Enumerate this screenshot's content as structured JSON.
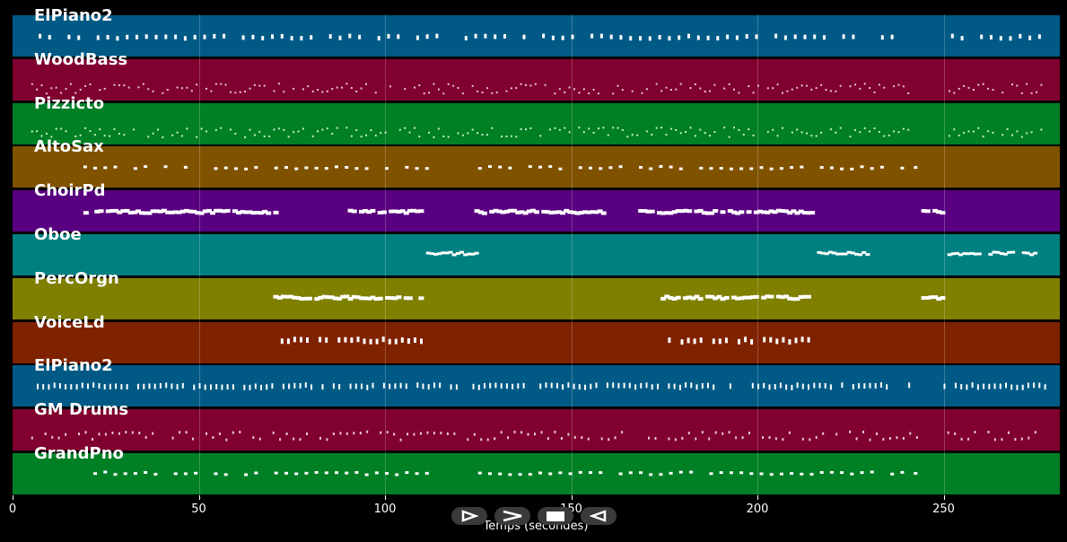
{
  "timeline": {
    "tracks": [
      {
        "name": "ElPiano2",
        "color": "#005a85",
        "note_color": "#ffffff"
      },
      {
        "name": "WoodBass",
        "color": "#80002f",
        "note_color": "#e8c8d0"
      },
      {
        "name": "Pizzicto",
        "color": "#007f25",
        "note_color": "#c8f0c8"
      },
      {
        "name": "AltoSax",
        "color": "#7f5200",
        "note_color": "#ffffff"
      },
      {
        "name": "ChoirPd",
        "color": "#580080",
        "note_color": "#ffffff"
      },
      {
        "name": "Oboe",
        "color": "#008080",
        "note_color": "#ffffff"
      },
      {
        "name": "PercOrgn",
        "color": "#7f7f00",
        "note_color": "#ffffff"
      },
      {
        "name": "VoiceLd",
        "color": "#7f2200",
        "note_color": "#ffffff"
      },
      {
        "name": "ElPiano2",
        "color": "#005a85",
        "note_color": "#ffffff"
      },
      {
        "name": "GM Drums",
        "color": "#80002f",
        "note_color": "#e8c8d0"
      },
      {
        "name": "GrandPno",
        "color": "#007f25",
        "note_color": "#ffffff"
      }
    ],
    "x_axis": {
      "label": "Temps (secondes)",
      "ticks": [
        0,
        50,
        100,
        150,
        200,
        250
      ],
      "tick_labels": [
        "0",
        "50",
        "100",
        "150",
        "200",
        "250"
      ],
      "range": [
        0,
        281
      ],
      "grid": true
    }
  },
  "controls": {
    "play_icon": "play-outline-icon",
    "forward_icon": "forward-chevron-icon",
    "stop_icon": "stop-icon",
    "rewind_icon": "rewind-icon"
  }
}
